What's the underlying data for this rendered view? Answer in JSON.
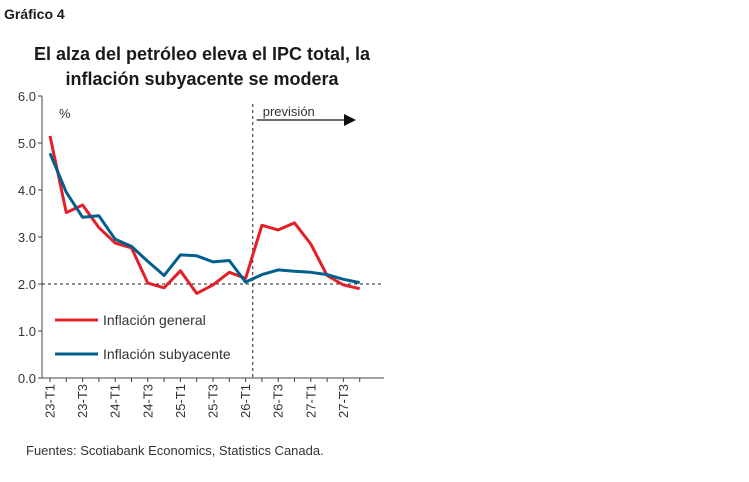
{
  "header": {
    "label": "Gráfico 4",
    "title_line1": "El alza del petróleo eleva el IPC total, la",
    "title_line2": "inflación subyacente se modera"
  },
  "footer": {
    "source": "Fuentes: Scotiabank Economics, Statistics Canada."
  },
  "chart_data": {
    "type": "line",
    "title": "El alza del petróleo eleva el IPC total, la inflación subyacente se modera",
    "ylabel": "%",
    "ylim": [
      0,
      6
    ],
    "yticks": [
      "0.0",
      "1.0",
      "2.0",
      "3.0",
      "4.0",
      "5.0",
      "6.0"
    ],
    "x_tick_labels": [
      "23-T1",
      "23-T3",
      "24-T1",
      "24-T3",
      "25-T1",
      "25-T3",
      "26-T1",
      "26-T3",
      "27-T1",
      "27-T3"
    ],
    "reference_line_y": 2.0,
    "forecast_label": "previsión",
    "forecast_start_index": 13,
    "legend_position": "bottom-left",
    "series": [
      {
        "name": "Inflación general",
        "color": "#e3202a",
        "values": [
          5.15,
          3.52,
          3.68,
          3.2,
          2.87,
          2.77,
          2.02,
          1.92,
          2.28,
          1.8,
          1.98,
          2.25,
          2.12,
          3.25,
          3.15,
          3.3,
          2.85,
          2.18,
          1.98,
          1.9
        ]
      },
      {
        "name": "Inflación subyacente",
        "color": "#005f8c",
        "values": [
          4.78,
          3.95,
          3.42,
          3.45,
          2.95,
          2.8,
          2.48,
          2.18,
          2.62,
          2.6,
          2.47,
          2.5,
          2.04,
          2.2,
          2.3,
          2.27,
          2.25,
          2.2,
          2.1,
          2.03
        ]
      }
    ]
  }
}
